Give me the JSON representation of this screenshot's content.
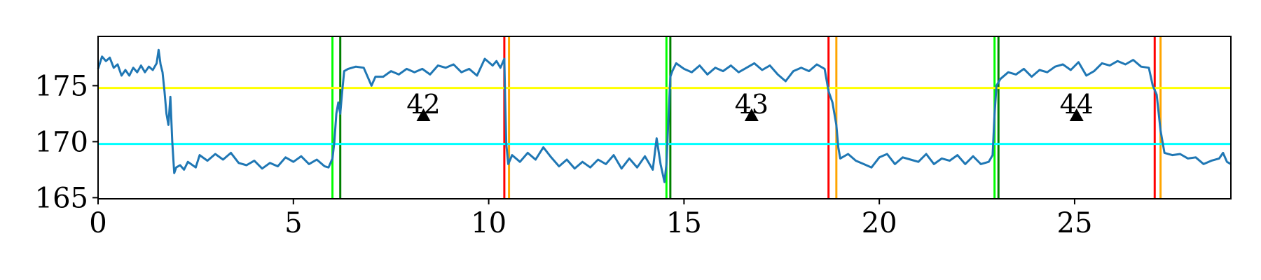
{
  "chart_data": {
    "type": "line",
    "xlim": [
      0,
      29
    ],
    "ylim": [
      164.9,
      179.4
    ],
    "x_ticks": [
      0,
      5,
      10,
      15,
      20,
      25
    ],
    "y_ticks": [
      165,
      170,
      175
    ],
    "grid": false,
    "legend": "none",
    "series": [
      {
        "color": "#1f77b4",
        "values": [
          [
            0.0,
            176.5
          ],
          [
            0.1,
            177.6
          ],
          [
            0.2,
            177.2
          ],
          [
            0.3,
            177.5
          ],
          [
            0.4,
            176.6
          ],
          [
            0.5,
            176.9
          ],
          [
            0.6,
            175.9
          ],
          [
            0.7,
            176.4
          ],
          [
            0.8,
            175.9
          ],
          [
            0.9,
            176.6
          ],
          [
            1.0,
            176.2
          ],
          [
            1.1,
            176.8
          ],
          [
            1.2,
            176.2
          ],
          [
            1.3,
            176.7
          ],
          [
            1.4,
            176.4
          ],
          [
            1.5,
            177.0
          ],
          [
            1.55,
            178.2
          ],
          [
            1.6,
            176.9
          ],
          [
            1.65,
            176.2
          ],
          [
            1.7,
            174.5
          ],
          [
            1.75,
            172.5
          ],
          [
            1.8,
            171.5
          ],
          [
            1.85,
            174.0
          ],
          [
            1.9,
            170.0
          ],
          [
            1.95,
            167.2
          ],
          [
            2.0,
            167.7
          ],
          [
            2.1,
            167.9
          ],
          [
            2.2,
            167.5
          ],
          [
            2.3,
            168.2
          ],
          [
            2.5,
            167.7
          ],
          [
            2.6,
            168.8
          ],
          [
            2.8,
            168.3
          ],
          [
            3.0,
            168.9
          ],
          [
            3.2,
            168.4
          ],
          [
            3.4,
            169.0
          ],
          [
            3.6,
            168.1
          ],
          [
            3.8,
            167.9
          ],
          [
            4.0,
            168.3
          ],
          [
            4.2,
            167.6
          ],
          [
            4.4,
            168.1
          ],
          [
            4.6,
            167.8
          ],
          [
            4.8,
            168.6
          ],
          [
            5.0,
            168.2
          ],
          [
            5.2,
            168.7
          ],
          [
            5.4,
            168.0
          ],
          [
            5.6,
            168.4
          ],
          [
            5.8,
            167.8
          ],
          [
            5.9,
            167.7
          ],
          [
            6.0,
            168.5
          ],
          [
            6.05,
            170.0
          ],
          [
            6.1,
            172.5
          ],
          [
            6.15,
            173.5
          ],
          [
            6.2,
            172.5
          ],
          [
            6.25,
            174.5
          ],
          [
            6.3,
            176.3
          ],
          [
            6.4,
            176.5
          ],
          [
            6.6,
            176.7
          ],
          [
            6.8,
            176.6
          ],
          [
            7.0,
            175.0
          ],
          [
            7.1,
            175.8
          ],
          [
            7.3,
            175.8
          ],
          [
            7.5,
            176.3
          ],
          [
            7.7,
            176.0
          ],
          [
            7.9,
            176.5
          ],
          [
            8.1,
            176.2
          ],
          [
            8.3,
            176.5
          ],
          [
            8.5,
            176.0
          ],
          [
            8.7,
            176.8
          ],
          [
            8.9,
            176.6
          ],
          [
            9.1,
            176.9
          ],
          [
            9.3,
            176.2
          ],
          [
            9.5,
            176.5
          ],
          [
            9.7,
            175.9
          ],
          [
            9.9,
            177.4
          ],
          [
            10.1,
            176.8
          ],
          [
            10.2,
            177.2
          ],
          [
            10.3,
            176.6
          ],
          [
            10.4,
            177.4
          ],
          [
            10.42,
            174.0
          ],
          [
            10.45,
            169.8
          ],
          [
            10.5,
            168.0
          ],
          [
            10.6,
            168.8
          ],
          [
            10.8,
            168.2
          ],
          [
            11.0,
            169.0
          ],
          [
            11.2,
            168.4
          ],
          [
            11.4,
            169.5
          ],
          [
            11.6,
            168.6
          ],
          [
            11.8,
            167.8
          ],
          [
            12.0,
            168.4
          ],
          [
            12.2,
            167.6
          ],
          [
            12.4,
            168.2
          ],
          [
            12.6,
            167.7
          ],
          [
            12.8,
            168.4
          ],
          [
            13.0,
            168.0
          ],
          [
            13.2,
            168.8
          ],
          [
            13.4,
            167.6
          ],
          [
            13.6,
            168.5
          ],
          [
            13.8,
            167.7
          ],
          [
            14.0,
            168.7
          ],
          [
            14.2,
            167.5
          ],
          [
            14.3,
            170.3
          ],
          [
            14.4,
            168.0
          ],
          [
            14.5,
            166.4
          ],
          [
            14.55,
            168.0
          ],
          [
            14.6,
            172.0
          ],
          [
            14.65,
            175.8
          ],
          [
            14.7,
            176.3
          ],
          [
            14.8,
            177.0
          ],
          [
            15.0,
            176.5
          ],
          [
            15.2,
            176.2
          ],
          [
            15.4,
            176.8
          ],
          [
            15.6,
            176.0
          ],
          [
            15.8,
            176.6
          ],
          [
            16.0,
            176.3
          ],
          [
            16.2,
            176.8
          ],
          [
            16.4,
            176.2
          ],
          [
            16.6,
            176.6
          ],
          [
            16.8,
            177.0
          ],
          [
            17.0,
            176.4
          ],
          [
            17.2,
            176.8
          ],
          [
            17.4,
            176.0
          ],
          [
            17.6,
            175.4
          ],
          [
            17.8,
            176.3
          ],
          [
            18.0,
            176.6
          ],
          [
            18.2,
            176.3
          ],
          [
            18.4,
            176.9
          ],
          [
            18.6,
            176.5
          ],
          [
            18.7,
            174.5
          ],
          [
            18.8,
            173.5
          ],
          [
            18.9,
            171.5
          ],
          [
            18.95,
            169.5
          ],
          [
            19.0,
            168.5
          ],
          [
            19.2,
            168.9
          ],
          [
            19.4,
            168.3
          ],
          [
            19.6,
            168.0
          ],
          [
            19.8,
            167.7
          ],
          [
            20.0,
            168.6
          ],
          [
            20.2,
            168.9
          ],
          [
            20.4,
            168.0
          ],
          [
            20.6,
            168.6
          ],
          [
            20.8,
            168.4
          ],
          [
            21.0,
            168.2
          ],
          [
            21.2,
            168.9
          ],
          [
            21.4,
            168.0
          ],
          [
            21.6,
            168.5
          ],
          [
            21.8,
            168.3
          ],
          [
            22.0,
            168.8
          ],
          [
            22.2,
            168.0
          ],
          [
            22.4,
            168.7
          ],
          [
            22.6,
            168.0
          ],
          [
            22.8,
            168.2
          ],
          [
            22.9,
            168.8
          ],
          [
            22.95,
            172.5
          ],
          [
            23.0,
            175.0
          ],
          [
            23.1,
            175.6
          ],
          [
            23.3,
            176.2
          ],
          [
            23.5,
            176.0
          ],
          [
            23.7,
            176.5
          ],
          [
            23.9,
            175.8
          ],
          [
            24.1,
            176.4
          ],
          [
            24.3,
            176.2
          ],
          [
            24.5,
            176.7
          ],
          [
            24.7,
            176.9
          ],
          [
            24.9,
            176.4
          ],
          [
            25.1,
            177.1
          ],
          [
            25.3,
            175.9
          ],
          [
            25.5,
            176.3
          ],
          [
            25.7,
            177.0
          ],
          [
            25.9,
            176.8
          ],
          [
            26.1,
            177.2
          ],
          [
            26.3,
            176.9
          ],
          [
            26.5,
            177.3
          ],
          [
            26.7,
            176.7
          ],
          [
            26.9,
            176.6
          ],
          [
            27.0,
            175.0
          ],
          [
            27.1,
            174.2
          ],
          [
            27.2,
            171.0
          ],
          [
            27.3,
            169.0
          ],
          [
            27.5,
            168.8
          ],
          [
            27.7,
            168.9
          ],
          [
            27.9,
            168.5
          ],
          [
            28.1,
            168.6
          ],
          [
            28.3,
            168.0
          ],
          [
            28.5,
            168.3
          ],
          [
            28.7,
            168.5
          ],
          [
            28.8,
            169.0
          ],
          [
            28.9,
            168.2
          ],
          [
            29.0,
            168.0
          ]
        ]
      }
    ],
    "hlines": [
      {
        "y": 174.8,
        "color": "#ffff00"
      },
      {
        "y": 169.8,
        "color": "#00ffff"
      }
    ],
    "vlines": [
      {
        "x": 6.0,
        "color": "#00ff00"
      },
      {
        "x": 6.2,
        "color": "#008000"
      },
      {
        "x": 10.4,
        "color": "#ff0000"
      },
      {
        "x": 10.52,
        "color": "#ffa500"
      },
      {
        "x": 14.55,
        "color": "#00ff00"
      },
      {
        "x": 14.65,
        "color": "#008000"
      },
      {
        "x": 18.7,
        "color": "#ff0000"
      },
      {
        "x": 18.9,
        "color": "#ffa500"
      },
      {
        "x": 22.95,
        "color": "#00ff00"
      },
      {
        "x": 23.05,
        "color": "#008000"
      },
      {
        "x": 27.05,
        "color": "#ff0000"
      },
      {
        "x": 27.2,
        "color": "#ffa500"
      }
    ],
    "annotations": [
      {
        "text": "42",
        "x": 8.33,
        "y": 172.4,
        "marker": "triangle"
      },
      {
        "text": "43",
        "x": 16.73,
        "y": 172.4,
        "marker": "triangle"
      },
      {
        "text": "44",
        "x": 25.05,
        "y": 172.4,
        "marker": "triangle"
      }
    ]
  }
}
